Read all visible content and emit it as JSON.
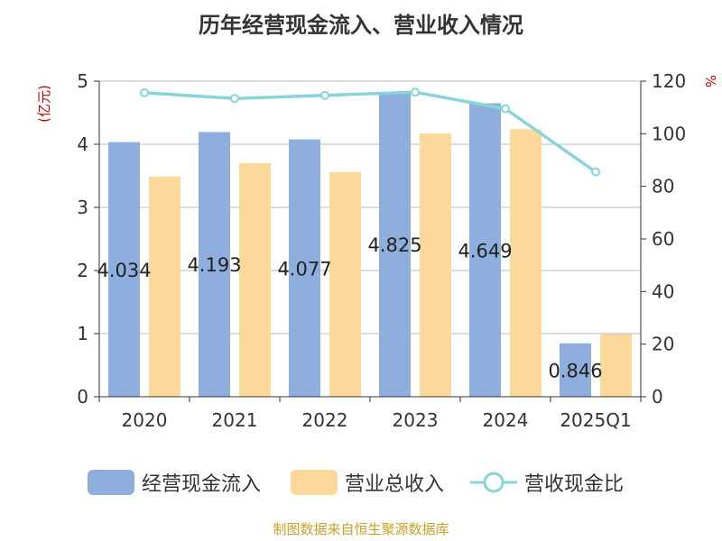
{
  "colors": {
    "bar_a": "#8eaedd",
    "bar_b": "#fdd89b",
    "line": "#88d4d8",
    "axis": "#333333",
    "grid": "#bbbbbb",
    "unit": "#cc0000",
    "source": "#c9a227"
  },
  "chart_data": {
    "type": "bar",
    "title": "历年经营现金流入、营业收入情况",
    "categories": [
      "2020",
      "2021",
      "2022",
      "2023",
      "2024",
      "2025Q1"
    ],
    "ylabel_left": "(亿元)",
    "ylabel_right": "%",
    "ylim_left": [
      0,
      5
    ],
    "ylim_right": [
      0,
      120
    ],
    "yticks_left": [
      "0",
      "1",
      "2",
      "3",
      "4",
      "5"
    ],
    "yticks_right": [
      "0",
      "20",
      "40",
      "60",
      "80",
      "100",
      "120"
    ],
    "grid": true,
    "legend_position": "bottom",
    "series": [
      {
        "name": "经营现金流入",
        "type": "bar",
        "axis": "left",
        "values": [
          4.034,
          4.193,
          4.077,
          4.825,
          4.649,
          0.846
        ],
        "labels": [
          "4.034",
          "4.193",
          "4.077",
          "4.825",
          "4.649",
          "0.846"
        ]
      },
      {
        "name": "营业总收入",
        "type": "bar",
        "axis": "left",
        "values": [
          3.49,
          3.7,
          3.56,
          4.17,
          4.24,
          0.99
        ]
      },
      {
        "name": "营收现金比",
        "type": "line",
        "axis": "right",
        "values": [
          115.6,
          113.4,
          114.6,
          115.8,
          109.5,
          85.5
        ]
      }
    ]
  },
  "source_text": "制图数据来自恒生聚源数据库"
}
